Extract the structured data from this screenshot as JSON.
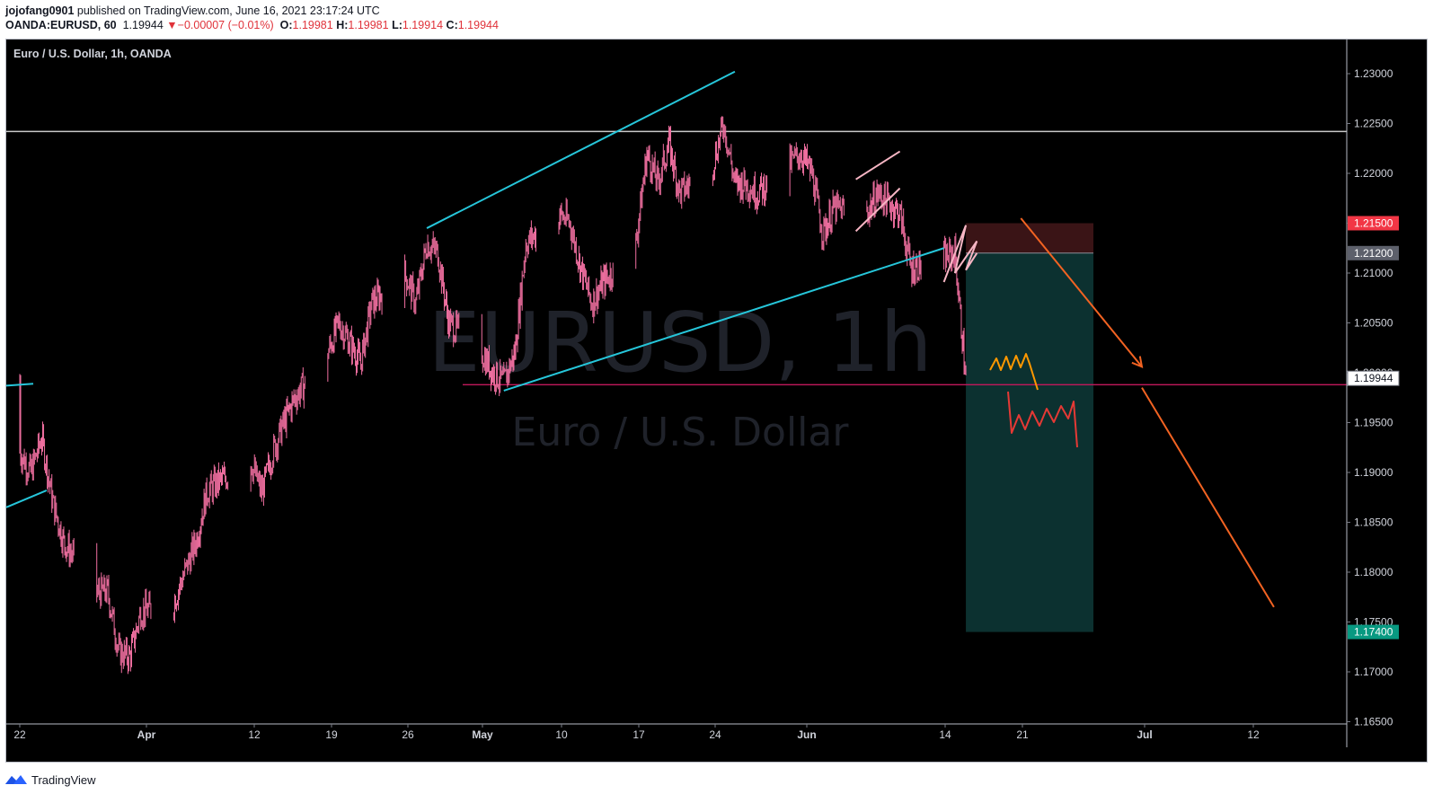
{
  "header": {
    "author": "jojofang0901",
    "published": "published on TradingView.com, June 16, 2021 23:17:24 UTC",
    "symbol": "OANDA:EURUSD, 60",
    "last": "1.19944",
    "change": "−0.00007 (−0.01%)",
    "o_label": "O:",
    "o_value": "1.19981",
    "h_label": "H:",
    "h_value": "1.19981",
    "l_label": "L:",
    "l_value": "1.19914",
    "c_label": "C:",
    "c_value": "1.19944"
  },
  "chart_title": "Euro / U.S. Dollar, 1h, OANDA",
  "watermark": {
    "symbol": "EURUSD, 1h",
    "name": "Euro / U.S. Dollar"
  },
  "footer": {
    "brand": "TradingView"
  },
  "colors": {
    "background": "#000000",
    "candle": "#f06fa0",
    "channel": "#26c6da",
    "pattern": "#f7b6c4",
    "resistance": "#c8c8c8",
    "support": "#c2185b",
    "arrow": "#f26322",
    "scenario_up": "#ff9800",
    "scenario_down": "#e53935",
    "stop_zone": "#3d1517",
    "target_zone": "#0e3a38",
    "stop_badge": "#f23645",
    "entry_badge": "#5d606b",
    "target_badge": "#089981",
    "last_badge": "#ffffff"
  },
  "chart_data": {
    "type": "candlestick",
    "title": "Euro / U.S. Dollar, 1h, OANDA",
    "symbol": "OANDA:EURUSD",
    "interval": "60",
    "y_axis": {
      "ticks": [
        "1.23000",
        "1.22500",
        "1.22000",
        "1.21500",
        "1.21000",
        "1.20500",
        "1.20000",
        "1.19500",
        "1.19000",
        "1.18500",
        "1.18000",
        "1.17500",
        "1.17000",
        "1.16500"
      ],
      "range": [
        1.165,
        1.2325
      ]
    },
    "x_axis": {
      "ticks": [
        "22",
        "Apr",
        "12",
        "19",
        "26",
        "May",
        "10",
        "17",
        "24",
        "Jun",
        "14",
        "21",
        "Jul",
        "12"
      ]
    },
    "price_path": [
      [
        "2021-03-22",
        1.192
      ],
      [
        "2021-03-23",
        1.19
      ],
      [
        "2021-03-24",
        1.1935
      ],
      [
        "2021-03-25",
        1.187
      ],
      [
        "2021-03-26",
        1.183
      ],
      [
        "2021-03-29",
        1.178
      ],
      [
        "2021-03-30",
        1.178
      ],
      [
        "2021-03-31",
        1.172
      ],
      [
        "2021-04-01",
        1.1715
      ],
      [
        "2021-04-02",
        1.176
      ],
      [
        "2021-04-05",
        1.177
      ],
      [
        "2021-04-06",
        1.18
      ],
      [
        "2021-04-07",
        1.183
      ],
      [
        "2021-04-08",
        1.188
      ],
      [
        "2021-04-09",
        1.189
      ],
      [
        "2021-04-12",
        1.191
      ],
      [
        "2021-04-13",
        1.188
      ],
      [
        "2021-04-14",
        1.192
      ],
      [
        "2021-04-15",
        1.195
      ],
      [
        "2021-04-16",
        1.1975
      ],
      [
        "2021-04-19",
        1.202
      ],
      [
        "2021-04-20",
        1.205
      ],
      [
        "2021-04-21",
        1.203
      ],
      [
        "2021-04-22",
        1.201
      ],
      [
        "2021-04-23",
        1.207
      ],
      [
        "2021-04-26",
        1.21
      ],
      [
        "2021-04-27",
        1.207
      ],
      [
        "2021-04-28",
        1.213
      ],
      [
        "2021-04-29",
        1.212
      ],
      [
        "2021-04-30",
        1.205
      ],
      [
        "2021-05-03",
        1.202
      ],
      [
        "2021-05-04",
        1.2
      ],
      [
        "2021-05-05",
        1.199
      ],
      [
        "2021-05-06",
        1.202
      ],
      [
        "2021-05-07",
        1.213
      ],
      [
        "2021-05-10",
        1.216
      ],
      [
        "2021-05-11",
        1.215
      ],
      [
        "2021-05-12",
        1.2105
      ],
      [
        "2021-05-13",
        1.207
      ],
      [
        "2021-05-14",
        1.209
      ],
      [
        "2021-05-17",
        1.213
      ],
      [
        "2021-05-18",
        1.222
      ],
      [
        "2021-05-19",
        1.219
      ],
      [
        "2021-05-20",
        1.223
      ],
      [
        "2021-05-21",
        1.218
      ],
      [
        "2021-05-24",
        1.221
      ],
      [
        "2021-05-25",
        1.225
      ],
      [
        "2021-05-26",
        1.219
      ],
      [
        "2021-05-27",
        1.219
      ],
      [
        "2021-05-28",
        1.218
      ],
      [
        "2021-05-31",
        1.221
      ],
      [
        "2021-06-01",
        1.222
      ],
      [
        "2021-06-02",
        1.22
      ],
      [
        "2021-06-03",
        1.214
      ],
      [
        "2021-06-04",
        1.2165
      ],
      [
        "2021-06-07",
        1.216
      ],
      [
        "2021-06-08",
        1.218
      ],
      [
        "2021-06-09",
        1.217
      ],
      [
        "2021-06-10",
        1.216
      ],
      [
        "2021-06-11",
        1.2105
      ],
      [
        "2021-06-14",
        1.2115
      ],
      [
        "2021-06-15",
        1.212
      ],
      [
        "2021-06-16",
        1.1994
      ]
    ],
    "last_price": 1.19944,
    "price_labels": [
      {
        "text": "1.21500",
        "value": 1.215,
        "role": "stop"
      },
      {
        "text": "1.21200",
        "value": 1.212,
        "role": "entry"
      },
      {
        "text": "1.19944",
        "value": 1.19944,
        "role": "last"
      },
      {
        "text": "1.17400",
        "value": 1.174,
        "role": "target"
      }
    ],
    "drawings": {
      "horizontal_resistance": 1.2242,
      "horizontal_support": 1.1988,
      "channel_upper": [
        [
          "2021-04-28",
          1.2145
        ],
        [
          "2021-05-26",
          1.2302
        ]
      ],
      "channel_lower": [
        [
          "2021-05-05",
          1.1982
        ],
        [
          "2021-06-14",
          1.2125
        ]
      ],
      "short_position": {
        "entry": 1.212,
        "stop": 1.215,
        "target": 1.174,
        "from": "2021-06-16",
        "to": "2021-06-24"
      },
      "projection_arrows": [
        [
          [
            "2021-06-21",
            1.2155
          ],
          [
            "2021-07-02",
            1.2006
          ]
        ],
        [
          [
            "2021-07-02",
            1.1985
          ],
          [
            "2021-07-14",
            1.1765
          ]
        ]
      ]
    },
    "grid": false,
    "legend": "top-left"
  }
}
